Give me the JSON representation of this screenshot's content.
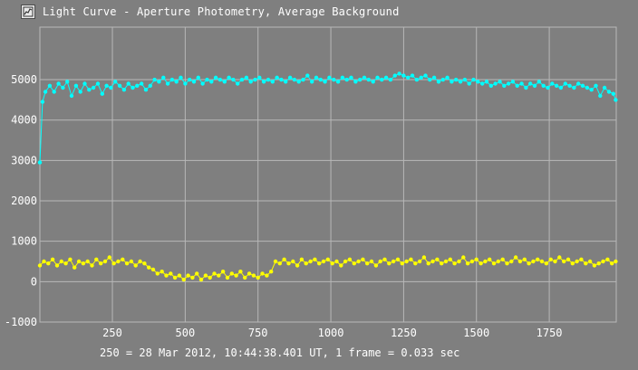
{
  "window": {
    "title": "Light Curve - Aperture Photometry, Average Background",
    "icon": "light-curve-app-icon"
  },
  "caption": "250 = 28 Mar 2012, 10:44:38.401 UT, 1 frame = 0.033 sec",
  "colors": {
    "background": "#7f7f7f",
    "grid": "#b8b8b8",
    "series_target": "#00ffff",
    "series_background": "#ffff00",
    "text": "#ffffff"
  },
  "chart_data": {
    "type": "line",
    "title": "",
    "xlabel": "",
    "ylabel": "",
    "xlim": [
      1,
      1980
    ],
    "ylim": [
      -1000,
      6300
    ],
    "x_ticks": [
      250,
      500,
      750,
      1000,
      1250,
      1500,
      1750
    ],
    "y_ticks": [
      -1000,
      0,
      1000,
      2000,
      3000,
      4000,
      5000
    ],
    "grid": true,
    "markers": true,
    "series": [
      {
        "color": "#00ffff",
        "points": [
          [
            1,
            2950
          ],
          [
            10,
            4450
          ],
          [
            20,
            4700
          ],
          [
            35,
            4850
          ],
          [
            50,
            4700
          ],
          [
            65,
            4900
          ],
          [
            80,
            4800
          ],
          [
            95,
            4950
          ],
          [
            110,
            4600
          ],
          [
            125,
            4850
          ],
          [
            140,
            4700
          ],
          [
            155,
            4900
          ],
          [
            170,
            4750
          ],
          [
            185,
            4800
          ],
          [
            200,
            4900
          ],
          [
            215,
            4650
          ],
          [
            230,
            4850
          ],
          [
            245,
            4800
          ],
          [
            260,
            4950
          ],
          [
            275,
            4850
          ],
          [
            290,
            4750
          ],
          [
            305,
            4900
          ],
          [
            320,
            4800
          ],
          [
            335,
            4850
          ],
          [
            350,
            4900
          ],
          [
            365,
            4750
          ],
          [
            380,
            4850
          ],
          [
            395,
            5000
          ],
          [
            410,
            4950
          ],
          [
            425,
            5050
          ],
          [
            440,
            4900
          ],
          [
            455,
            5000
          ],
          [
            470,
            4950
          ],
          [
            485,
            5050
          ],
          [
            500,
            4900
          ],
          [
            515,
            5000
          ],
          [
            530,
            4950
          ],
          [
            545,
            5050
          ],
          [
            560,
            4900
          ],
          [
            575,
            5000
          ],
          [
            590,
            4950
          ],
          [
            605,
            5050
          ],
          [
            620,
            5000
          ],
          [
            635,
            4950
          ],
          [
            650,
            5050
          ],
          [
            665,
            5000
          ],
          [
            680,
            4900
          ],
          [
            695,
            5000
          ],
          [
            710,
            5050
          ],
          [
            725,
            4950
          ],
          [
            740,
            5000
          ],
          [
            755,
            5050
          ],
          [
            770,
            4950
          ],
          [
            785,
            5000
          ],
          [
            800,
            4950
          ],
          [
            815,
            5050
          ],
          [
            830,
            5000
          ],
          [
            845,
            4950
          ],
          [
            860,
            5050
          ],
          [
            875,
            5000
          ],
          [
            890,
            4950
          ],
          [
            905,
            5000
          ],
          [
            920,
            5100
          ],
          [
            935,
            4950
          ],
          [
            950,
            5050
          ],
          [
            965,
            5000
          ],
          [
            980,
            4950
          ],
          [
            995,
            5050
          ],
          [
            1010,
            5000
          ],
          [
            1025,
            4950
          ],
          [
            1040,
            5050
          ],
          [
            1055,
            5000
          ],
          [
            1070,
            5050
          ],
          [
            1085,
            4950
          ],
          [
            1100,
            5000
          ],
          [
            1115,
            5050
          ],
          [
            1130,
            5000
          ],
          [
            1145,
            4950
          ],
          [
            1160,
            5050
          ],
          [
            1175,
            5000
          ],
          [
            1190,
            5050
          ],
          [
            1205,
            5000
          ],
          [
            1220,
            5100
          ],
          [
            1235,
            5150
          ],
          [
            1250,
            5100
          ],
          [
            1265,
            5050
          ],
          [
            1280,
            5100
          ],
          [
            1295,
            5000
          ],
          [
            1310,
            5050
          ],
          [
            1325,
            5100
          ],
          [
            1340,
            5000
          ],
          [
            1355,
            5050
          ],
          [
            1370,
            4950
          ],
          [
            1385,
            5000
          ],
          [
            1400,
            5050
          ],
          [
            1415,
            4950
          ],
          [
            1430,
            5000
          ],
          [
            1445,
            4950
          ],
          [
            1460,
            5000
          ],
          [
            1475,
            4900
          ],
          [
            1490,
            5000
          ],
          [
            1505,
            4950
          ],
          [
            1520,
            4900
          ],
          [
            1535,
            4950
          ],
          [
            1550,
            4850
          ],
          [
            1565,
            4900
          ],
          [
            1580,
            4950
          ],
          [
            1595,
            4850
          ],
          [
            1610,
            4900
          ],
          [
            1625,
            4950
          ],
          [
            1640,
            4850
          ],
          [
            1655,
            4900
          ],
          [
            1670,
            4800
          ],
          [
            1685,
            4900
          ],
          [
            1700,
            4850
          ],
          [
            1715,
            4950
          ],
          [
            1730,
            4850
          ],
          [
            1745,
            4800
          ],
          [
            1760,
            4900
          ],
          [
            1775,
            4850
          ],
          [
            1790,
            4800
          ],
          [
            1805,
            4900
          ],
          [
            1820,
            4850
          ],
          [
            1835,
            4800
          ],
          [
            1850,
            4900
          ],
          [
            1865,
            4850
          ],
          [
            1880,
            4800
          ],
          [
            1895,
            4750
          ],
          [
            1910,
            4850
          ],
          [
            1925,
            4600
          ],
          [
            1940,
            4800
          ],
          [
            1955,
            4700
          ],
          [
            1970,
            4650
          ],
          [
            1978,
            4500
          ]
        ]
      },
      {
        "color": "#ffff00",
        "points": [
          [
            1,
            400
          ],
          [
            15,
            500
          ],
          [
            30,
            450
          ],
          [
            45,
            550
          ],
          [
            60,
            400
          ],
          [
            75,
            500
          ],
          [
            90,
            450
          ],
          [
            105,
            550
          ],
          [
            120,
            350
          ],
          [
            135,
            500
          ],
          [
            150,
            450
          ],
          [
            165,
            500
          ],
          [
            180,
            400
          ],
          [
            195,
            550
          ],
          [
            210,
            450
          ],
          [
            225,
            500
          ],
          [
            240,
            600
          ],
          [
            255,
            450
          ],
          [
            270,
            500
          ],
          [
            285,
            550
          ],
          [
            300,
            450
          ],
          [
            315,
            500
          ],
          [
            330,
            400
          ],
          [
            345,
            500
          ],
          [
            360,
            450
          ],
          [
            375,
            350
          ],
          [
            390,
            300
          ],
          [
            405,
            200
          ],
          [
            420,
            250
          ],
          [
            435,
            150
          ],
          [
            450,
            200
          ],
          [
            465,
            100
          ],
          [
            480,
            150
          ],
          [
            495,
            50
          ],
          [
            510,
            150
          ],
          [
            525,
            100
          ],
          [
            540,
            200
          ],
          [
            555,
            50
          ],
          [
            570,
            150
          ],
          [
            585,
            100
          ],
          [
            600,
            200
          ],
          [
            615,
            150
          ],
          [
            630,
            250
          ],
          [
            645,
            100
          ],
          [
            660,
            200
          ],
          [
            675,
            150
          ],
          [
            690,
            250
          ],
          [
            705,
            100
          ],
          [
            720,
            200
          ],
          [
            735,
            150
          ],
          [
            750,
            100
          ],
          [
            765,
            200
          ],
          [
            780,
            150
          ],
          [
            795,
            250
          ],
          [
            810,
            500
          ],
          [
            825,
            450
          ],
          [
            840,
            550
          ],
          [
            855,
            450
          ],
          [
            870,
            500
          ],
          [
            885,
            400
          ],
          [
            900,
            550
          ],
          [
            915,
            450
          ],
          [
            930,
            500
          ],
          [
            945,
            550
          ],
          [
            960,
            450
          ],
          [
            975,
            500
          ],
          [
            990,
            550
          ],
          [
            1005,
            450
          ],
          [
            1020,
            500
          ],
          [
            1035,
            400
          ],
          [
            1050,
            500
          ],
          [
            1065,
            550
          ],
          [
            1080,
            450
          ],
          [
            1095,
            500
          ],
          [
            1110,
            550
          ],
          [
            1125,
            450
          ],
          [
            1140,
            500
          ],
          [
            1155,
            400
          ],
          [
            1170,
            500
          ],
          [
            1185,
            550
          ],
          [
            1200,
            450
          ],
          [
            1215,
            500
          ],
          [
            1230,
            550
          ],
          [
            1245,
            450
          ],
          [
            1260,
            500
          ],
          [
            1275,
            550
          ],
          [
            1290,
            450
          ],
          [
            1305,
            500
          ],
          [
            1320,
            600
          ],
          [
            1335,
            450
          ],
          [
            1350,
            500
          ],
          [
            1365,
            550
          ],
          [
            1380,
            450
          ],
          [
            1395,
            500
          ],
          [
            1410,
            550
          ],
          [
            1425,
            450
          ],
          [
            1440,
            500
          ],
          [
            1455,
            600
          ],
          [
            1470,
            450
          ],
          [
            1485,
            500
          ],
          [
            1500,
            550
          ],
          [
            1515,
            450
          ],
          [
            1530,
            500
          ],
          [
            1545,
            550
          ],
          [
            1560,
            450
          ],
          [
            1575,
            500
          ],
          [
            1590,
            550
          ],
          [
            1605,
            450
          ],
          [
            1620,
            500
          ],
          [
            1635,
            600
          ],
          [
            1650,
            500
          ],
          [
            1665,
            550
          ],
          [
            1680,
            450
          ],
          [
            1695,
            500
          ],
          [
            1710,
            550
          ],
          [
            1725,
            500
          ],
          [
            1740,
            450
          ],
          [
            1755,
            550
          ],
          [
            1770,
            500
          ],
          [
            1785,
            600
          ],
          [
            1800,
            500
          ],
          [
            1815,
            550
          ],
          [
            1830,
            450
          ],
          [
            1845,
            500
          ],
          [
            1860,
            550
          ],
          [
            1875,
            450
          ],
          [
            1890,
            500
          ],
          [
            1905,
            400
          ],
          [
            1920,
            450
          ],
          [
            1935,
            500
          ],
          [
            1950,
            550
          ],
          [
            1965,
            450
          ],
          [
            1978,
            500
          ]
        ]
      }
    ]
  }
}
